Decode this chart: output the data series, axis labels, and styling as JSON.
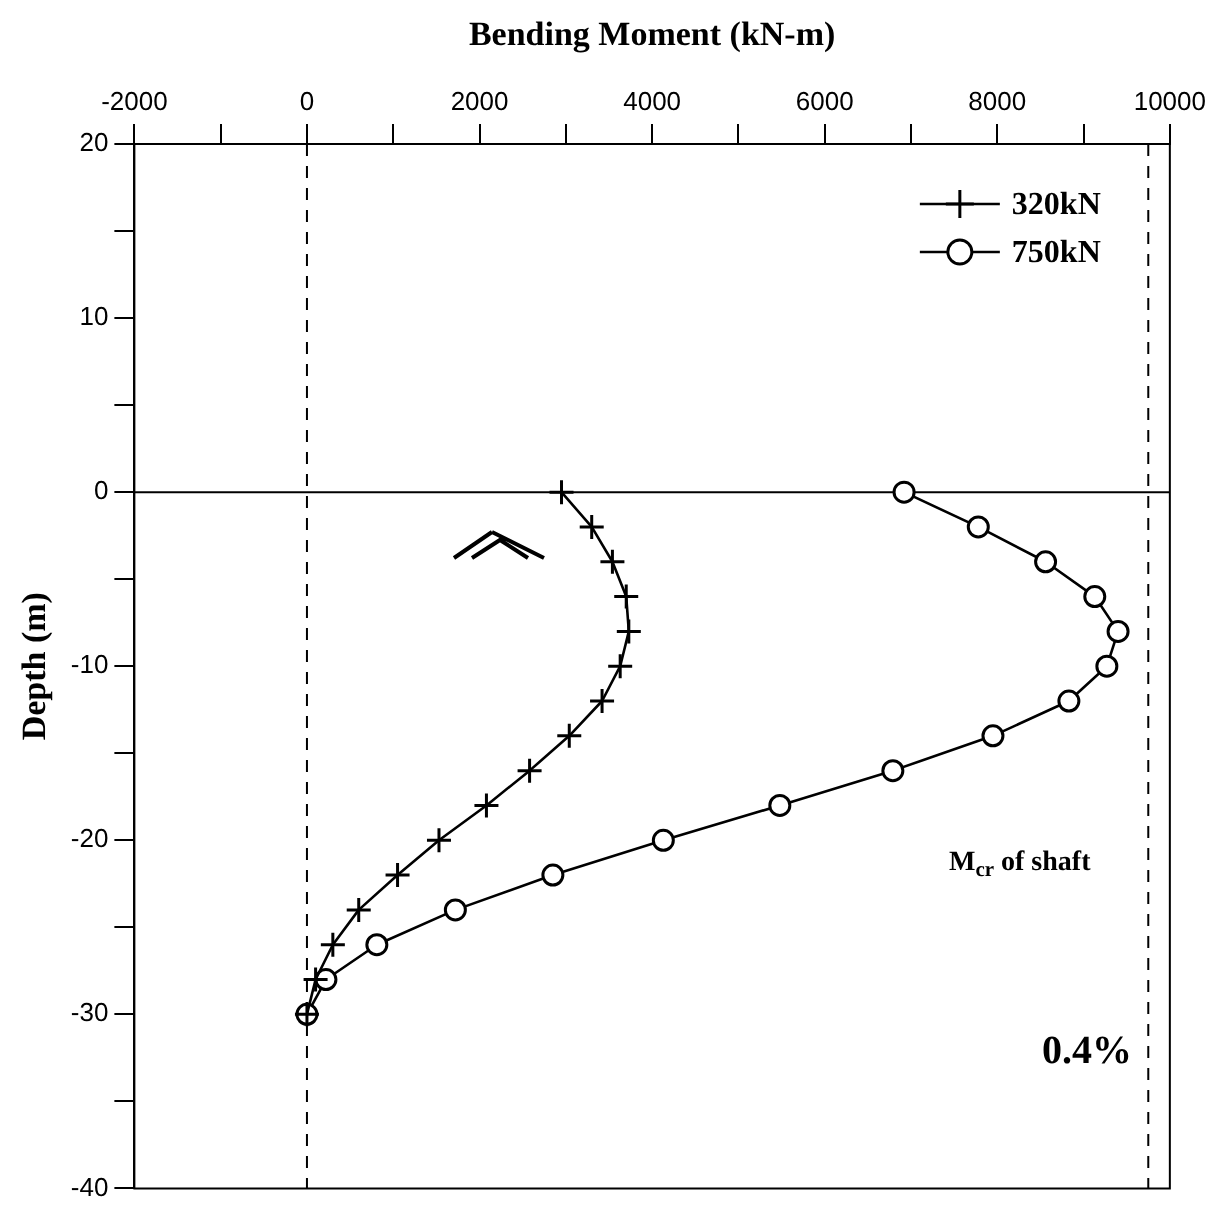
{
  "chart_data": {
    "type": "line",
    "xlabel": "Bending Moment (kN-m)",
    "ylabel": "Depth (m)",
    "xlim": [
      -2000,
      10000
    ],
    "ylim": [
      -40,
      20
    ],
    "xticks": [
      -2000,
      {
        "value": -1000,
        "label": null
      },
      0,
      {
        "value": 1000,
        "label": null
      },
      2000,
      {
        "value": 3000,
        "label": null
      },
      4000,
      {
        "value": 5000,
        "label": null
      },
      6000,
      {
        "value": 7000,
        "label": null
      },
      8000,
      {
        "value": 9000,
        "label": null
      },
      10000
    ],
    "yticks": [
      -40,
      {
        "value": -35,
        "label": null
      },
      -30,
      {
        "value": -25,
        "label": null
      },
      -20,
      {
        "value": -15,
        "label": null
      },
      -10,
      {
        "value": -5,
        "label": null
      },
      0,
      {
        "value": 5,
        "label": null
      },
      10,
      {
        "value": 15,
        "label": null
      },
      20
    ],
    "series": [
      {
        "name": "320kN",
        "color": "#000000",
        "marker": "cross",
        "x": [
          2950,
          3300,
          3540,
          3700,
          3730,
          3630,
          3420,
          3040,
          2580,
          2080,
          1530,
          1050,
          600,
          300,
          100,
          0
        ],
        "values": [
          0,
          -2,
          -4,
          -6,
          -8,
          -10,
          -12,
          -14,
          -16,
          -18,
          -20,
          -22,
          -24,
          -26,
          -28,
          -30
        ]
      },
      {
        "name": "750kN",
        "color": "#000000",
        "marker": "circle",
        "x": [
          6920,
          7780,
          8560,
          9130,
          9400,
          9270,
          8830,
          7950,
          6790,
          5480,
          4130,
          2850,
          1720,
          810,
          220,
          0
        ],
        "values": [
          0,
          -2,
          -4,
          -6,
          -8,
          -10,
          -12,
          -14,
          -16,
          -18,
          -20,
          -22,
          -24,
          -26,
          -28,
          -30
        ]
      }
    ],
    "ref_lines": [
      {
        "axis": "x",
        "value": 0,
        "line_style": "dashed",
        "color": "#000000"
      },
      {
        "axis": "x",
        "value": 9750,
        "line_style": "dashed",
        "color": "#000000"
      },
      {
        "axis": "y",
        "value": 0,
        "line_style": "solid",
        "color": "#000000"
      }
    ],
    "annotations": [
      "M$_{cr}$ of shaft",
      "0.4%"
    ],
    "legend": "top right",
    "grid": false,
    "line_style": "solid"
  }
}
